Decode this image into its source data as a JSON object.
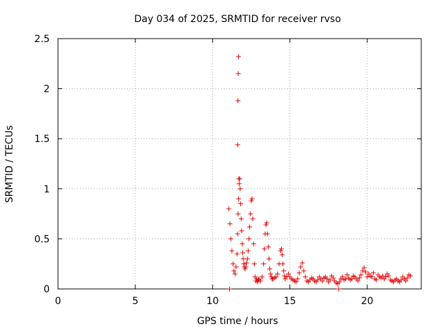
{
  "chart_data": {
    "type": "scatter",
    "title": "Day 034 of 2025, SRMTID for receiver rvso",
    "xlabel": "GPS time / hours",
    "ylabel": "SRMTID / TECUs",
    "xlim": [
      0,
      23.5
    ],
    "ylim": [
      0,
      2.5
    ],
    "xticks": [
      0,
      5,
      10,
      15,
      20
    ],
    "yticks": [
      0,
      0.5,
      1,
      1.5,
      2,
      2.5
    ],
    "xtick_labels": [
      "0",
      "5",
      "10",
      "15",
      "20"
    ],
    "ytick_labels": [
      "0",
      "0.5",
      "1",
      "1.5",
      "2",
      "2.5"
    ],
    "grid": true,
    "marker": "+",
    "color": "#e00000",
    "series": [
      {
        "name": "SRMTID",
        "x": [
          11.05,
          11.12,
          11.18,
          11.25,
          11.32,
          11.38,
          11.45,
          11.52,
          11.58,
          11.62,
          11.65,
          11.68,
          11.72,
          11.75,
          11.78,
          11.82,
          11.85,
          11.88,
          11.92,
          11.95,
          11.98,
          12.02,
          12.05,
          12.1,
          12.15,
          12.2,
          12.25,
          12.3,
          12.35,
          12.4,
          12.45,
          12.5,
          12.55,
          12.6,
          12.65,
          12.7,
          12.75,
          12.8,
          12.85,
          12.9,
          12.95,
          13.0,
          13.1,
          13.2,
          13.3,
          13.35,
          13.4,
          13.45,
          13.5,
          13.55,
          13.6,
          13.65,
          13.7,
          13.75,
          13.8,
          13.85,
          13.9,
          14.0,
          14.1,
          14.2,
          14.3,
          14.4,
          14.45,
          14.5,
          14.55,
          14.6,
          14.65,
          14.7,
          14.8,
          14.9,
          15.0,
          15.1,
          15.2,
          15.3,
          15.4,
          15.5,
          15.6,
          15.7,
          15.8,
          15.9,
          16.0,
          16.1,
          16.2,
          16.3,
          16.4,
          16.5,
          16.6,
          16.7,
          16.8,
          16.9,
          17.0,
          17.1,
          17.2,
          17.3,
          17.4,
          17.5,
          17.6,
          17.7,
          17.8,
          17.9,
          18.0,
          18.1,
          18.2,
          18.3,
          18.4,
          18.5,
          18.6,
          18.7,
          18.8,
          18.9,
          19.0,
          19.1,
          19.2,
          19.3,
          19.4,
          19.5,
          19.6,
          19.7,
          19.8,
          19.9,
          20.0,
          20.1,
          20.2,
          20.3,
          20.4,
          20.5,
          20.6,
          20.7,
          20.8,
          20.9,
          21.0,
          21.1,
          21.2,
          21.3,
          21.4,
          21.5,
          21.6,
          21.7,
          21.8,
          21.9,
          22.0,
          22.1,
          22.2,
          22.3,
          22.4,
          22.5,
          22.6,
          22.7,
          22.8,
          11.62,
          11.64,
          11.66,
          11.68,
          11.7,
          11.1,
          18.15
        ],
        "y": [
          0.8,
          0.65,
          0.5,
          0.38,
          0.25,
          0.18,
          0.15,
          0.22,
          0.35,
          0.55,
          0.75,
          0.9,
          1.05,
          1.1,
          1.0,
          0.85,
          0.7,
          0.58,
          0.45,
          0.36,
          0.3,
          0.25,
          0.22,
          0.2,
          0.22,
          0.26,
          0.3,
          0.38,
          0.5,
          0.62,
          0.75,
          0.88,
          0.9,
          0.7,
          0.45,
          0.25,
          0.12,
          0.08,
          0.1,
          0.07,
          0.09,
          0.1,
          0.08,
          0.12,
          0.25,
          0.4,
          0.55,
          0.64,
          0.66,
          0.55,
          0.42,
          0.3,
          0.2,
          0.15,
          0.12,
          0.1,
          0.1,
          0.11,
          0.12,
          0.15,
          0.25,
          0.38,
          0.4,
          0.34,
          0.25,
          0.18,
          0.13,
          0.1,
          0.12,
          0.15,
          0.12,
          0.1,
          0.09,
          0.08,
          0.07,
          0.1,
          0.16,
          0.22,
          0.26,
          0.18,
          0.12,
          0.08,
          0.07,
          0.09,
          0.11,
          0.1,
          0.08,
          0.07,
          0.09,
          0.12,
          0.1,
          0.08,
          0.11,
          0.12,
          0.1,
          0.07,
          0.09,
          0.13,
          0.11,
          0.08,
          0.06,
          0.05,
          0.07,
          0.1,
          0.12,
          0.09,
          0.1,
          0.14,
          0.11,
          0.09,
          0.1,
          0.13,
          0.12,
          0.1,
          0.08,
          0.11,
          0.14,
          0.18,
          0.21,
          0.17,
          0.12,
          0.15,
          0.13,
          0.12,
          0.16,
          0.1,
          0.09,
          0.14,
          0.12,
          0.11,
          0.13,
          0.1,
          0.12,
          0.15,
          0.13,
          0.09,
          0.08,
          0.07,
          0.09,
          0.1,
          0.08,
          0.07,
          0.09,
          0.12,
          0.1,
          0.08,
          0.11,
          0.14,
          0.13,
          1.44,
          1.88,
          2.15,
          2.32,
          1.1,
          0.0,
          0.0
        ]
      }
    ]
  }
}
